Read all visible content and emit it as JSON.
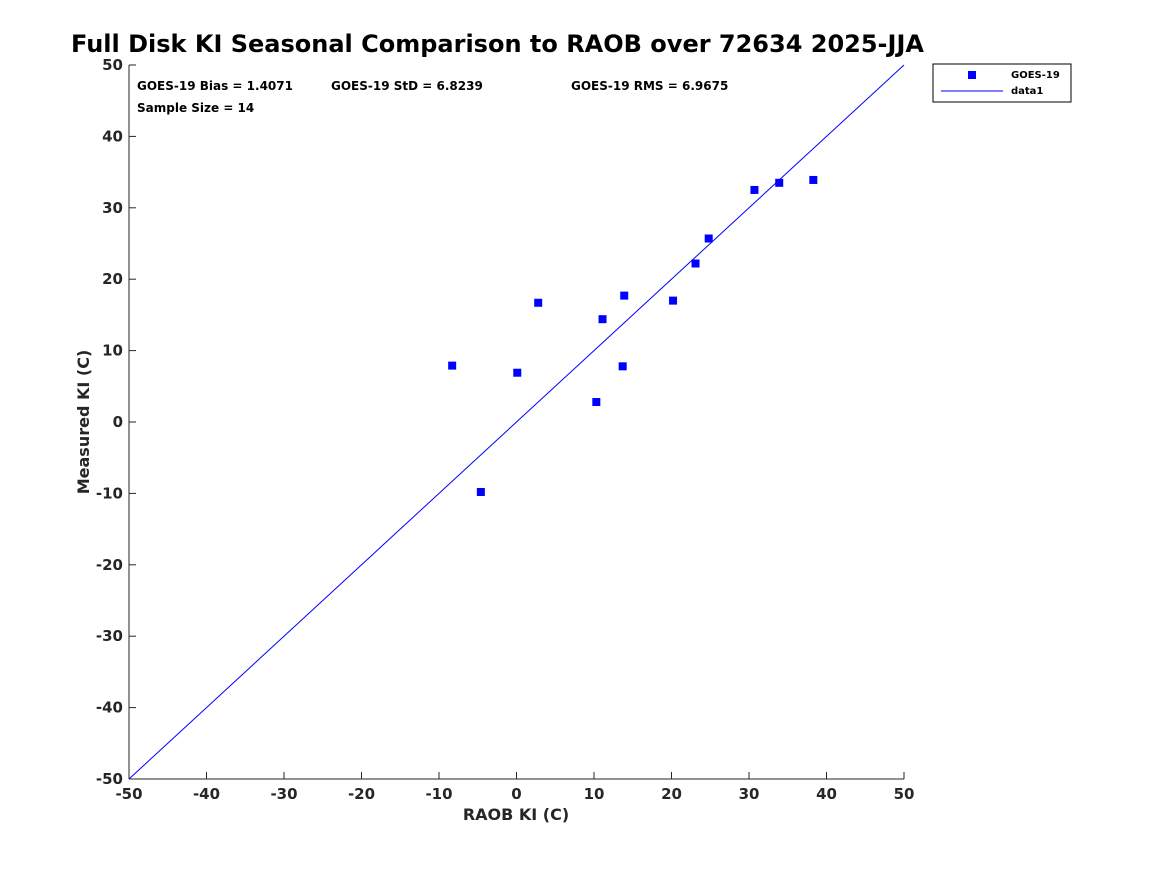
{
  "chart_data": {
    "type": "scatter",
    "title": "Full Disk KI Seasonal Comparison to RAOB over 72634 2025-JJA",
    "xlabel": "RAOB KI (C)",
    "ylabel": "Measured KI (C)",
    "xlim": [
      -50,
      50
    ],
    "ylim": [
      -50,
      50
    ],
    "xticks": [
      "-50",
      "-40",
      "-30",
      "-20",
      "-10",
      "0",
      "10",
      "20",
      "30",
      "40",
      "50"
    ],
    "yticks": [
      "50",
      "40",
      "30",
      "20",
      "10",
      "0",
      "-10",
      "-20",
      "-30",
      "-40",
      "-50"
    ],
    "grid": false,
    "legend_position": "top-right",
    "series": [
      {
        "name": "GOES-19",
        "kind": "markers",
        "marker": "square",
        "color": "#0000ff",
        "points": [
          [
            -8.3,
            7.9
          ],
          [
            -4.6,
            -9.8
          ],
          [
            0.1,
            6.9
          ],
          [
            2.8,
            16.7
          ],
          [
            10.3,
            2.8
          ],
          [
            11.1,
            14.4
          ],
          [
            13.7,
            7.8
          ],
          [
            13.9,
            17.7
          ],
          [
            20.2,
            17.0
          ],
          [
            23.1,
            22.2
          ],
          [
            24.8,
            25.7
          ],
          [
            30.7,
            32.5
          ],
          [
            33.9,
            33.5
          ],
          [
            38.3,
            33.9
          ]
        ]
      },
      {
        "name": "data1",
        "kind": "line",
        "color": "#0000ff",
        "points": [
          [
            -50,
            -50
          ],
          [
            50,
            50
          ]
        ]
      }
    ],
    "stats": {
      "bias": "GOES-19 Bias = 1.4071",
      "std": "GOES-19 StD = 6.8239",
      "rms": "GOES-19 RMS = 6.9675",
      "sample_size": "Sample Size = 14"
    }
  }
}
